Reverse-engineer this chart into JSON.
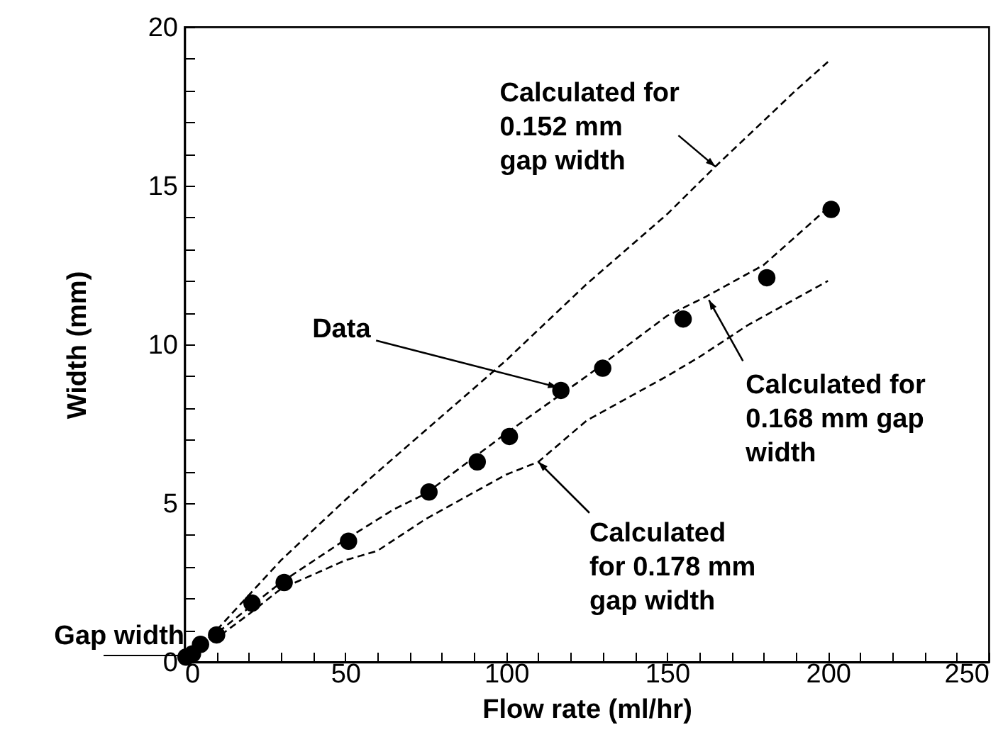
{
  "chart_data": {
    "type": "scatter",
    "xlabel": "Flow rate (ml/hr)",
    "ylabel": "Width (mm)",
    "xlim": [
      0,
      250
    ],
    "ylim": [
      0,
      20
    ],
    "xticks": [
      0,
      {
        "value": 10,
        "label": null
      },
      {
        "value": 20,
        "label": null
      },
      {
        "value": 30,
        "label": null
      },
      {
        "value": 40,
        "label": null
      },
      50,
      {
        "value": 60,
        "label": null
      },
      {
        "value": 70,
        "label": null
      },
      {
        "value": 80,
        "label": null
      },
      {
        "value": 90,
        "label": null
      },
      100,
      {
        "value": 110,
        "label": null
      },
      {
        "value": 120,
        "label": null
      },
      {
        "value": 130,
        "label": null
      },
      {
        "value": 140,
        "label": null
      },
      150,
      {
        "value": 160,
        "label": null
      },
      {
        "value": 170,
        "label": null
      },
      {
        "value": 180,
        "label": null
      },
      {
        "value": 190,
        "label": null
      },
      200,
      {
        "value": 210,
        "label": null
      },
      {
        "value": 220,
        "label": null
      },
      {
        "value": 230,
        "label": null
      },
      {
        "value": 240,
        "label": null
      },
      250
    ],
    "yticks": [
      0,
      {
        "value": 1,
        "label": null
      },
      {
        "value": 2,
        "label": null
      },
      {
        "value": 3,
        "label": null
      },
      {
        "value": 4,
        "label": null
      },
      5,
      {
        "value": 6,
        "label": null
      },
      {
        "value": 7,
        "label": null
      },
      {
        "value": 8,
        "label": null
      },
      {
        "value": 9,
        "label": null
      },
      10,
      {
        "value": 11,
        "label": null
      },
      {
        "value": 12,
        "label": null
      },
      {
        "value": 13,
        "label": null
      },
      {
        "value": 14,
        "label": null
      },
      15,
      {
        "value": 16,
        "label": null
      },
      {
        "value": 17,
        "label": null
      },
      {
        "value": 18,
        "label": null
      },
      {
        "value": 19,
        "label": null
      },
      20
    ],
    "grid": false,
    "series": [
      {
        "type": "line",
        "color": "#000000",
        "line_style": "dashed",
        "marker": "none",
        "x": [
          0,
          10,
          20,
          30,
          50,
          75,
          100,
          125,
          150,
          165,
          190,
          200
        ],
        "values": [
          0,
          1,
          2.1,
          3.2,
          5.1,
          7.3,
          9.5,
          11.9,
          14.1,
          15.6,
          18,
          18.9
        ]
      },
      {
        "type": "line",
        "color": "#000000",
        "line_style": "dashed",
        "marker": "none",
        "x": [
          0,
          10,
          20,
          30,
          50,
          65,
          75,
          100,
          125,
          150,
          162,
          180,
          200
        ],
        "values": [
          0,
          0.9,
          1.7,
          2.5,
          3.85,
          4.8,
          5.3,
          7.2,
          9,
          10.9,
          11.5,
          12.5,
          14.3
        ]
      },
      {
        "type": "line",
        "color": "#000000",
        "line_style": "dashed",
        "marker": "none",
        "x": [
          0,
          10,
          20,
          30,
          50,
          60,
          75,
          100,
          110,
          125,
          150,
          160,
          175,
          200
        ],
        "values": [
          0,
          0.75,
          1.5,
          2.3,
          3.2,
          3.5,
          4.5,
          5.9,
          6.3,
          7.6,
          9,
          9.6,
          10.6,
          12
        ]
      },
      {
        "color": "#000000",
        "marker": "circle",
        "x": [
          0.5,
          2.5,
          5,
          10,
          21,
          31,
          51,
          76,
          91,
          101,
          117,
          130,
          155,
          181,
          201
        ],
        "values": [
          0.15,
          0.25,
          0.55,
          0.85,
          1.85,
          2.5,
          3.8,
          5.35,
          6.3,
          7.1,
          8.55,
          9.25,
          10.8,
          12.1,
          14.25
        ]
      }
    ],
    "annotations": [
      {
        "text": "Calculated for\n0.152 mm\ngap width",
        "x": 165,
        "y": 15.6
      },
      {
        "text": "Data",
        "x": 116,
        "y": 8.65
      },
      {
        "text": "Calculated for\n0.168 mm gap\nwidth",
        "x": 163,
        "y": 11.4
      },
      {
        "text": "Calculated\nfor 0.178 mm\ngap width",
        "x": 110,
        "y": 6.3
      },
      {
        "text": "Gap width",
        "x": 0,
        "y": 0.2
      }
    ]
  }
}
